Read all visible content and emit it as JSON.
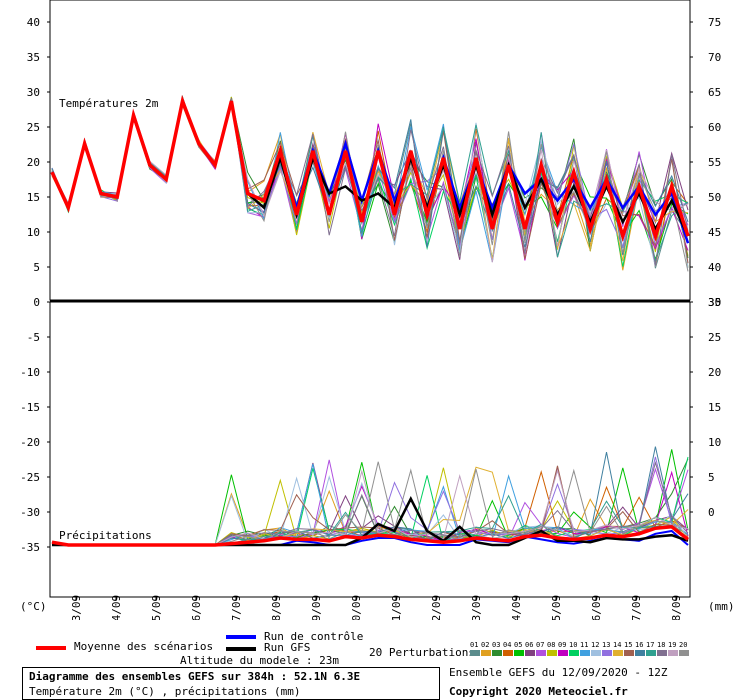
{
  "chart_data": {
    "type": "line",
    "panels": [
      {
        "name": "temperature",
        "label": "Températures 2m",
        "left_ticks": [
          40,
          35,
          30,
          25,
          20,
          15,
          10,
          5,
          0
        ],
        "right_ticks": [
          75,
          70,
          65,
          60,
          55,
          50,
          45,
          40,
          35
        ],
        "ylim": [
          0,
          42
        ]
      },
      {
        "name": "precipitation",
        "label": "Précipitations",
        "left_ticks": [
          -5,
          -10,
          -15,
          -20,
          -25,
          -30,
          -35
        ],
        "right_ticks": [
          30,
          25,
          20,
          15,
          10,
          5,
          0
        ],
        "ylim_left": [
          -40,
          0
        ],
        "ylim_right": [
          -5,
          35
        ]
      }
    ],
    "x_ticks": [
      "13/09",
      "14/09",
      "15/09",
      "16/09",
      "17/09",
      "18/09",
      "19/09",
      "20/09",
      "21/09",
      "22/09",
      "23/09",
      "24/09",
      "25/09",
      "26/09",
      "27/09",
      "28/09"
    ],
    "left_unit": "(°C)",
    "right_unit": "(mm)",
    "x_hours_max": 384,
    "mean_temperature": [
      18,
      13,
      22,
      15,
      14.5,
      26,
      19,
      17,
      28,
      22,
      19,
      28,
      15,
      14,
      21,
      12,
      21,
      12,
      21,
      11,
      21,
      12,
      21,
      12,
      20,
      10,
      20,
      10,
      19,
      10,
      19,
      11,
      18,
      10,
      17,
      9,
      16,
      9,
      16,
      9
    ],
    "control_temperature": [
      18,
      13,
      22,
      15,
      14.5,
      26,
      19,
      17,
      28,
      22,
      19,
      28,
      15,
      14,
      20,
      13,
      21,
      15,
      22,
      14,
      21,
      14,
      20,
      13,
      20,
      13,
      19,
      13,
      19,
      15,
      17,
      14,
      17,
      13,
      17,
      13,
      16,
      12,
      15,
      8
    ],
    "gfs_temperature": [
      18,
      13,
      22,
      15,
      14.5,
      26,
      19,
      17,
      28,
      22,
      19,
      28,
      15,
      13,
      20,
      12,
      20,
      15,
      16,
      14,
      15,
      13,
      20,
      13,
      19,
      12,
      19,
      12,
      19,
      13,
      17,
      12,
      16,
      11,
      16,
      11,
      15,
      10,
      14,
      9
    ],
    "mean_precip": [
      0.2,
      0,
      0,
      0,
      0,
      0,
      0,
      0,
      0,
      0,
      0,
      0.1,
      0.2,
      0.3,
      0.5,
      0.4,
      0.4,
      0.3,
      0.6,
      0.5,
      0.7,
      0.6,
      0.4,
      0.3,
      0.2,
      0.3,
      0.5,
      0.4,
      0.3,
      0.6,
      0.7,
      0.5,
      0.4,
      0.5,
      0.7,
      0.6,
      0.8,
      1.2,
      1.3,
      0.4
    ],
    "gfs_precip": [
      0,
      0,
      0,
      0,
      0,
      0,
      0,
      0,
      0,
      0,
      0,
      0,
      0,
      0,
      0,
      0,
      0,
      0,
      0,
      0.5,
      1.5,
      1,
      3.3,
      1,
      0.3,
      1.3,
      0.2,
      0,
      0,
      0.5,
      1,
      0.3,
      0.3,
      0.2,
      0.5,
      0.4,
      0.4,
      0.6,
      0.7,
      0.3
    ],
    "control_precip": [
      0,
      0,
      0,
      0,
      0,
      0,
      0,
      0,
      0,
      0,
      0,
      0,
      0,
      0,
      0,
      0.3,
      0.2,
      0,
      0,
      0.3,
      0.5,
      0.5,
      0.2,
      0,
      0,
      0,
      0.4,
      0.3,
      0.2,
      0.6,
      0.4,
      0.2,
      0.1,
      0.3,
      0.5,
      0.4,
      0.3,
      0.8,
      1,
      0
    ],
    "perturbation_colors": [
      "#5b8c8c",
      "#e0a020",
      "#2e8b2e",
      "#d06000",
      "#00c000",
      "#804080",
      "#b050e0",
      "#c0c000",
      "#c000c0",
      "#00d060",
      "#40a0e0",
      "#a0c0e0",
      "#9070e0",
      "#e0b030",
      "#a06050",
      "#4080a0",
      "#30a090",
      "#807090",
      "#c0a0c0",
      "#909090"
    ]
  },
  "legend": {
    "mean_label": "Moyenne des scénarios",
    "control_label": "Run de contrôle",
    "gfs_label": "Run GFS",
    "perturbations_label": "20 Perturbations",
    "perturbation_numbers": [
      "01",
      "02",
      "03",
      "04",
      "05",
      "06",
      "07",
      "08",
      "09",
      "10",
      "11",
      "12",
      "13",
      "14",
      "15",
      "16",
      "17",
      "18",
      "19",
      "20"
    ],
    "altitude": "Altitude du modele : 23m",
    "mean_color": "#ff0000",
    "control_color": "#0000ff",
    "gfs_color": "#000000"
  },
  "footer": {
    "title": "Diagramme des ensembles GEFS sur 384h : 52.1N 6.3E",
    "subtitle": "Température 2m (°C) , précipitations (mm)",
    "run": "Ensemble GEFS du 12/09/2020 - 12Z",
    "copyright": "Copyright 2020 Meteociel.fr"
  }
}
